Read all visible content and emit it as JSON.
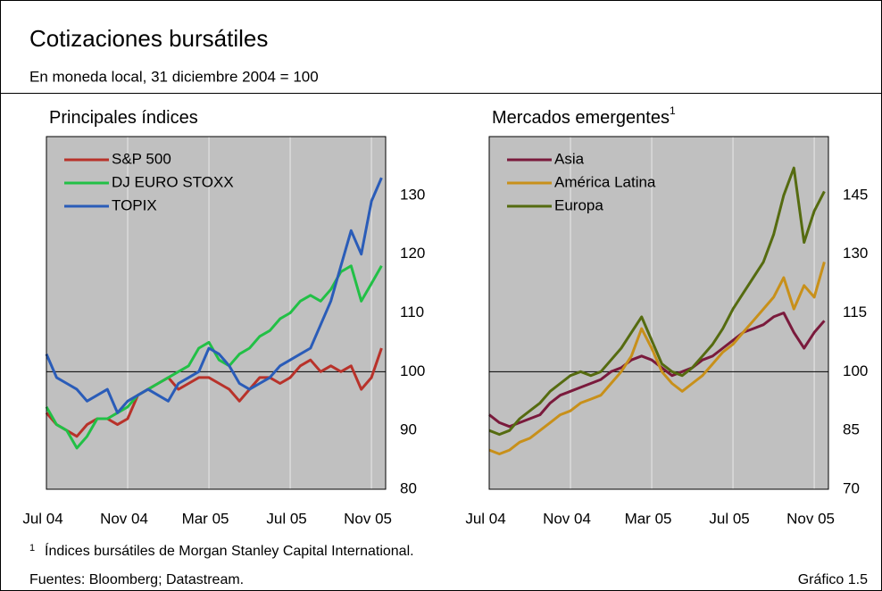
{
  "title": "Cotizaciones bursátiles",
  "subtitle": "En moneda local, 31 diciembre 2004 = 100",
  "footnote": {
    "marker": "1",
    "text": "Índices bursátiles de Morgan Stanley Capital International."
  },
  "source": "Fuentes: Bloomberg; Datastream.",
  "figure_label": "Gráfico 1.5",
  "chart_data": [
    {
      "type": "line",
      "title": "Principales índices",
      "x": [
        0,
        0.5,
        1,
        1.5,
        2,
        2.5,
        3,
        3.5,
        4,
        4.5,
        5,
        5.5,
        6,
        6.5,
        7,
        7.5,
        8,
        8.5,
        9,
        9.5,
        10,
        10.5,
        11,
        11.5,
        12,
        12.5,
        13,
        13.5,
        14,
        14.5,
        15,
        15.5,
        16,
        16.5
      ],
      "xlim": [
        0,
        16.7
      ],
      "xticks": [
        {
          "value": 0,
          "label": "Jul 04"
        },
        {
          "value": 4,
          "label": "Nov 04"
        },
        {
          "value": 8,
          "label": "Mar 05"
        },
        {
          "value": 12,
          "label": "Jul 05"
        },
        {
          "value": 16,
          "label": "Nov 05"
        }
      ],
      "ylim": [
        80,
        140
      ],
      "yticks": [
        80,
        90,
        100,
        110,
        120,
        130
      ],
      "reference_line": 100,
      "grid": "x",
      "legend": "top-left",
      "series": [
        {
          "name": "S&P 500",
          "color": "#b8322a",
          "values": [
            93,
            91,
            90,
            89,
            91,
            92,
            92,
            91,
            92,
            96,
            97,
            98,
            99,
            97,
            98,
            99,
            99,
            98,
            97,
            95,
            97,
            99,
            99,
            98,
            99,
            101,
            102,
            100,
            101,
            100,
            101,
            97,
            99,
            104
          ]
        },
        {
          "name": "DJ EURO STOXX",
          "color": "#22c046",
          "values": [
            94,
            91,
            90,
            87,
            89,
            92,
            92,
            93,
            94,
            96,
            97,
            98,
            99,
            100,
            101,
            104,
            105,
            102,
            101,
            103,
            104,
            106,
            107,
            109,
            110,
            112,
            113,
            112,
            114,
            117,
            118,
            112,
            115,
            118
          ]
        },
        {
          "name": "TOPIX",
          "color": "#2a5cb8",
          "values": [
            103,
            99,
            98,
            97,
            95,
            96,
            97,
            93,
            95,
            96,
            97,
            96,
            95,
            98,
            99,
            100,
            104,
            103,
            101,
            98,
            97,
            98,
            99,
            101,
            102,
            103,
            104,
            108,
            112,
            118,
            124,
            120,
            129,
            133
          ]
        }
      ]
    },
    {
      "type": "line",
      "title": "Mercados emergentes",
      "title_note": "1",
      "x": [
        0,
        0.5,
        1,
        1.5,
        2,
        2.5,
        3,
        3.5,
        4,
        4.5,
        5,
        5.5,
        6,
        6.5,
        7,
        7.5,
        8,
        8.5,
        9,
        9.5,
        10,
        10.5,
        11,
        11.5,
        12,
        12.5,
        13,
        13.5,
        14,
        14.5,
        15,
        15.5,
        16,
        16.5
      ],
      "xlim": [
        0,
        16.7
      ],
      "xticks": [
        {
          "value": 0,
          "label": "Jul 04"
        },
        {
          "value": 4,
          "label": "Nov 04"
        },
        {
          "value": 8,
          "label": "Mar 05"
        },
        {
          "value": 12,
          "label": "Jul 05"
        },
        {
          "value": 16,
          "label": "Nov 05"
        }
      ],
      "ylim": [
        70,
        160
      ],
      "yticks": [
        70,
        85,
        100,
        115,
        130,
        145
      ],
      "reference_line": 100,
      "grid": "x",
      "legend": "top-left",
      "series": [
        {
          "name": "Asia",
          "color": "#7a1a3c",
          "values": [
            89,
            87,
            86,
            87,
            88,
            89,
            92,
            94,
            95,
            96,
            97,
            98,
            100,
            101,
            103,
            104,
            103,
            101,
            99,
            100,
            101,
            103,
            104,
            106,
            108,
            110,
            111,
            112,
            114,
            115,
            110,
            106,
            110,
            113
          ]
        },
        {
          "name": "América Latina",
          "color": "#c8901a",
          "values": [
            80,
            79,
            80,
            82,
            83,
            85,
            87,
            89,
            90,
            92,
            93,
            94,
            97,
            100,
            104,
            111,
            106,
            100,
            97,
            95,
            97,
            99,
            102,
            105,
            107,
            110,
            113,
            116,
            119,
            124,
            116,
            122,
            119,
            128
          ]
        },
        {
          "name": "Europa",
          "color": "#556b10",
          "values": [
            85,
            84,
            85,
            88,
            90,
            92,
            95,
            97,
            99,
            100,
            99,
            100,
            103,
            106,
            110,
            114,
            108,
            102,
            100,
            99,
            101,
            104,
            107,
            111,
            116,
            120,
            124,
            128,
            135,
            145,
            152,
            133,
            141,
            146
          ]
        }
      ]
    }
  ]
}
